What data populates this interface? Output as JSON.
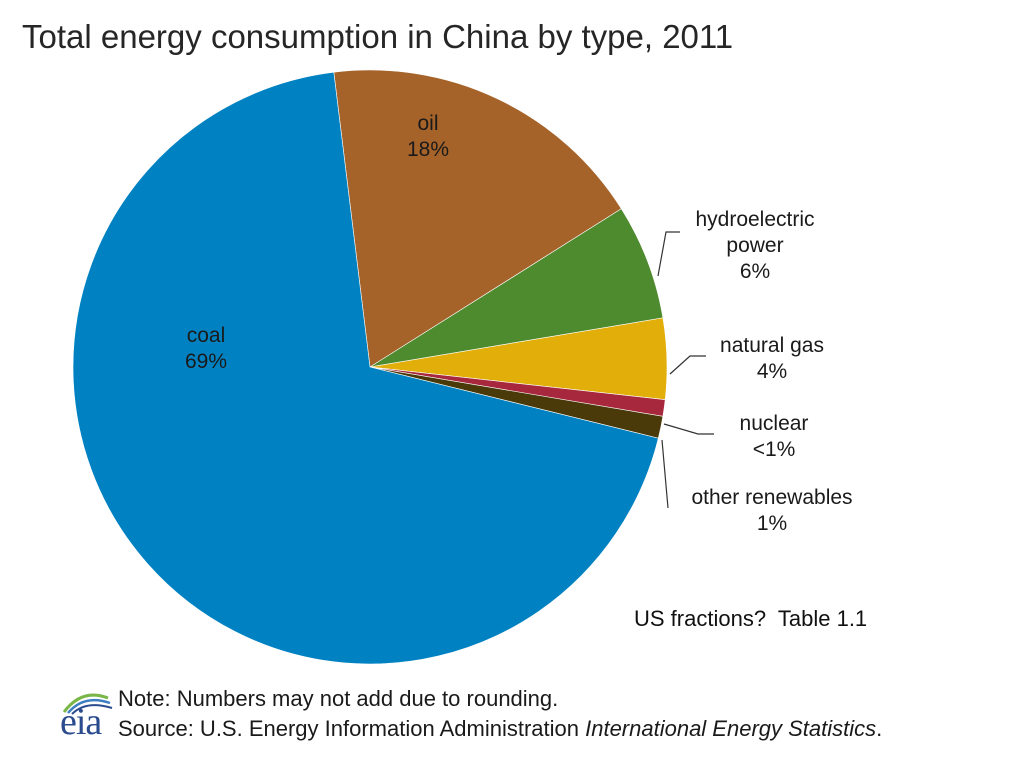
{
  "chart_data": {
    "type": "pie",
    "title": "Total energy consumption in China by type, 2011",
    "start_angle_deg": -7,
    "direction": "clockwise",
    "slices": [
      {
        "name": "oil",
        "value": 18,
        "label_name": "oil",
        "label_value": "18%",
        "color": "#A5632A"
      },
      {
        "name": "hydroelectric power",
        "value": 6.3,
        "label_name": "hydroelectric power",
        "label_value": "6%",
        "color": "#4E8A2E"
      },
      {
        "name": "natural gas",
        "value": 4.4,
        "label_name": "natural gas",
        "label_value": "4%",
        "color": "#E2AE0A"
      },
      {
        "name": "nuclear",
        "value": 0.9,
        "label_name": "nuclear",
        "label_value": "<1%",
        "color": "#A7283C"
      },
      {
        "name": "other renewables",
        "value": 1.2,
        "label_name": "other renewables",
        "label_value": "1%",
        "color": "#4A3A0A"
      },
      {
        "name": "coal",
        "value": 69.2,
        "label_name": "coal",
        "label_value": "69%",
        "color": "#0082C2"
      }
    ]
  },
  "side_note": "US fractions?  Table 1.1",
  "footer": {
    "logo_text": "eia",
    "note": "Note: Numbers may not add due to rounding.",
    "source_prefix": "Source: U.S. Energy Information  Administration ",
    "source_italic": "International Energy Statistics",
    "source_suffix": "."
  },
  "colors": {
    "title": "#262626",
    "leader_line": "#333333",
    "logo_blue": "#2a4b8d",
    "logo_green": "#7ab648"
  }
}
